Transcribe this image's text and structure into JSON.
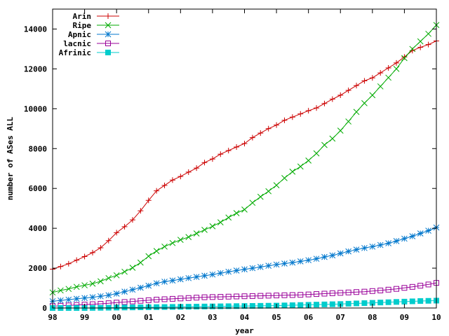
{
  "chart_data": {
    "type": "line",
    "title": "",
    "xlabel": "year",
    "ylabel": "number of ASes ALL",
    "xlim": [
      1998,
      2010
    ],
    "ylim": [
      0,
      15000
    ],
    "x_ticks": [
      {
        "value": 1998,
        "label": "98"
      },
      {
        "value": 1999,
        "label": "99"
      },
      {
        "value": 2000,
        "label": "00"
      },
      {
        "value": 2001,
        "label": "01"
      },
      {
        "value": 2002,
        "label": "02"
      },
      {
        "value": 2003,
        "label": "03"
      },
      {
        "value": 2004,
        "label": "04"
      },
      {
        "value": 2005,
        "label": "05"
      },
      {
        "value": 2006,
        "label": "06"
      },
      {
        "value": 2007,
        "label": "07"
      },
      {
        "value": 2008,
        "label": "08"
      },
      {
        "value": 2009,
        "label": "09"
      },
      {
        "value": 2010,
        "label": "10"
      }
    ],
    "y_ticks": [
      {
        "value": 0,
        "label": "0"
      },
      {
        "value": 2000,
        "label": "2000"
      },
      {
        "value": 4000,
        "label": "4000"
      },
      {
        "value": 6000,
        "label": "6000"
      },
      {
        "value": 8000,
        "label": "8000"
      },
      {
        "value": 10000,
        "label": "10000"
      },
      {
        "value": 12000,
        "label": "12000"
      },
      {
        "value": 14000,
        "label": "14000"
      }
    ],
    "grid": false,
    "legend": "top-left",
    "x": [
      1998.0,
      1998.25,
      1998.5,
      1998.75,
      1999.0,
      1999.25,
      1999.5,
      1999.75,
      2000.0,
      2000.25,
      2000.5,
      2000.75,
      2001.0,
      2001.25,
      2001.5,
      2001.75,
      2002.0,
      2002.25,
      2002.5,
      2002.75,
      2003.0,
      2003.25,
      2003.5,
      2003.75,
      2004.0,
      2004.25,
      2004.5,
      2004.75,
      2005.0,
      2005.25,
      2005.5,
      2005.75,
      2006.0,
      2006.25,
      2006.5,
      2006.75,
      2007.0,
      2007.25,
      2007.5,
      2007.75,
      2008.0,
      2008.25,
      2008.5,
      2008.75,
      2009.0,
      2009.25,
      2009.5,
      2009.75,
      2010.0
    ],
    "series": [
      {
        "name": "Arin",
        "color": "#cc0000",
        "marker": "plus",
        "values": [
          1950,
          2080,
          2220,
          2400,
          2580,
          2780,
          3020,
          3380,
          3780,
          4080,
          4420,
          4880,
          5400,
          5880,
          6150,
          6420,
          6600,
          6820,
          7020,
          7300,
          7480,
          7720,
          7900,
          8080,
          8250,
          8550,
          8780,
          9000,
          9180,
          9420,
          9580,
          9740,
          9900,
          10040,
          10260,
          10480,
          10680,
          10920,
          11160,
          11400,
          11550,
          11800,
          12050,
          12300,
          12600,
          12920,
          13080,
          13220,
          13400
        ]
      },
      {
        "name": "Ripe",
        "color": "#00aa00",
        "marker": "cross",
        "values": [
          780,
          880,
          960,
          1060,
          1140,
          1220,
          1340,
          1500,
          1640,
          1820,
          2020,
          2280,
          2600,
          2860,
          3080,
          3260,
          3420,
          3560,
          3740,
          3920,
          4100,
          4300,
          4540,
          4760,
          4940,
          5280,
          5580,
          5860,
          6160,
          6520,
          6840,
          7100,
          7400,
          7760,
          8180,
          8500,
          8900,
          9360,
          9840,
          10280,
          10680,
          11120,
          11560,
          12000,
          12540,
          13000,
          13380,
          13760,
          14200
        ]
      },
      {
        "name": "Apnic",
        "color": "#0077cc",
        "marker": "star",
        "values": [
          340,
          380,
          420,
          460,
          500,
          540,
          590,
          640,
          720,
          820,
          920,
          1020,
          1120,
          1240,
          1320,
          1380,
          1440,
          1500,
          1560,
          1620,
          1680,
          1750,
          1820,
          1880,
          1940,
          2000,
          2060,
          2120,
          2180,
          2230,
          2280,
          2340,
          2400,
          2470,
          2560,
          2640,
          2740,
          2840,
          2930,
          3010,
          3080,
          3160,
          3250,
          3360,
          3480,
          3600,
          3740,
          3880,
          4040
        ]
      },
      {
        "name": "lacnic",
        "color": "#990099",
        "marker": "square-open",
        "values": [
          90,
          110,
          130,
          150,
          170,
          190,
          210,
          240,
          270,
          300,
          330,
          360,
          390,
          420,
          440,
          460,
          480,
          500,
          520,
          540,
          550,
          560,
          570,
          580,
          590,
          600,
          610,
          620,
          630,
          640,
          650,
          660,
          680,
          700,
          720,
          740,
          760,
          780,
          800,
          820,
          850,
          880,
          920,
          960,
          1010,
          1060,
          1120,
          1180,
          1260
        ]
      },
      {
        "name": "Afrinic",
        "color": "#00cccc",
        "marker": "square-filled",
        "values": [
          0,
          0,
          0,
          0,
          0,
          5,
          10,
          15,
          20,
          25,
          30,
          35,
          40,
          45,
          50,
          55,
          60,
          65,
          70,
          75,
          80,
          85,
          90,
          95,
          100,
          105,
          110,
          115,
          120,
          130,
          140,
          150,
          160,
          170,
          180,
          190,
          200,
          215,
          230,
          245,
          260,
          275,
          290,
          305,
          320,
          335,
          350,
          360,
          370
        ]
      }
    ]
  }
}
